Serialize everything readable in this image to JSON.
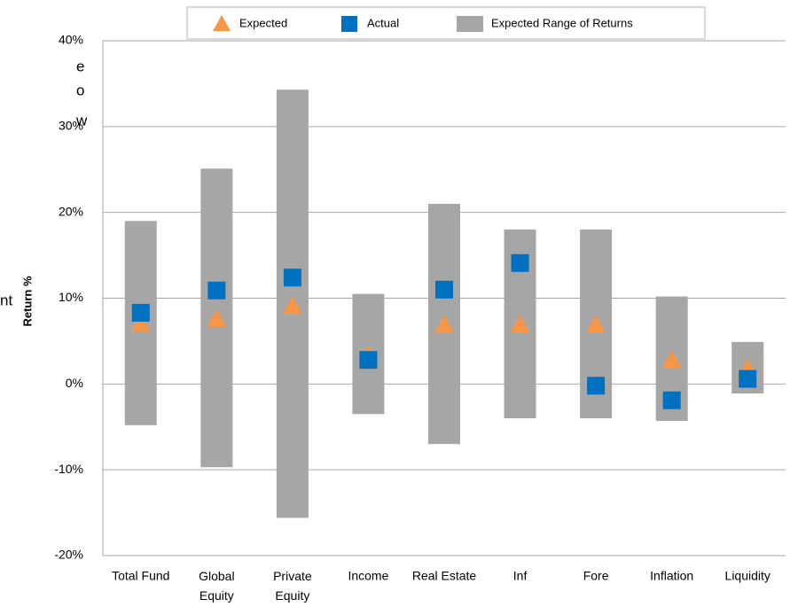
{
  "chart_data": {
    "type": "range",
    "y_label": "Return %",
    "side_fragments": [
      "e",
      "o",
      "w",
      "nt"
    ],
    "categories": [
      "Total Fund",
      "Global Equity",
      "Private Equity",
      "Income",
      "Real Estate",
      "Inf",
      "Fore",
      "Inflation",
      "Liquidity"
    ],
    "series": [
      {
        "name": "Expected",
        "color": "#f79646",
        "marker": "triangle",
        "values": [
          7,
          7.6,
          9.1,
          3.4,
          6.9,
          6.9,
          6.9,
          2.8,
          1.8
        ]
      },
      {
        "name": "Actual",
        "color": "#0070c0",
        "marker": "square",
        "values": [
          8.3,
          10.9,
          12.4,
          2.8,
          11,
          14.1,
          -0.2,
          -1.9,
          0.6
        ]
      },
      {
        "name": "Expected Range of Returns",
        "color": "#a6a6a6",
        "marker": "range",
        "low": [
          -4.8,
          -9.7,
          -15.6,
          -3.5,
          -7,
          -4,
          -4,
          -4.3,
          -1.1
        ],
        "high": [
          19,
          25.1,
          34.3,
          10.5,
          21,
          18,
          18,
          10.2,
          4.9
        ]
      }
    ],
    "ylim": [
      -20,
      40
    ],
    "yticks": [
      {
        "value": -20,
        "label": "-20%"
      },
      {
        "value": -10,
        "label": "-10%"
      },
      {
        "value": 0,
        "label": "0%"
      },
      {
        "value": 10,
        "label": "10%"
      },
      {
        "value": 20,
        "label": "20%"
      },
      {
        "value": 30,
        "label": "30%"
      },
      {
        "value": 40,
        "label": "40%"
      }
    ],
    "grid": true
  }
}
